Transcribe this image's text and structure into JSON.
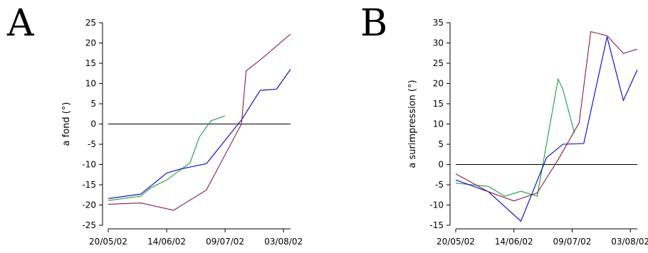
{
  "chart_data": [
    {
      "type": "line",
      "panel_label": "A",
      "ylabel": "a fond (°)",
      "ylim": [
        -25,
        25
      ],
      "yticks": [
        -25,
        -20,
        -15,
        -10,
        -5,
        0,
        5,
        10,
        15,
        20,
        25
      ],
      "xticks": [
        "20/05/02",
        "14/06/02",
        "09/07/02",
        "03/08/02"
      ],
      "xlim": [
        "2002-05-20",
        "2002-08-06"
      ],
      "zero_line": true,
      "grid": false,
      "series": [
        {
          "color": "#1a9e3a",
          "points": [
            [
              "2002-05-20",
              -18.9
            ],
            [
              "2002-06-03",
              -17.8
            ],
            [
              "2002-06-07",
              -15.8
            ],
            [
              "2002-06-14",
              -13.8
            ],
            [
              "2002-06-24",
              -9.6
            ],
            [
              "2002-06-28",
              -3.2
            ],
            [
              "2002-07-03",
              0.8
            ],
            [
              "2002-07-09",
              2.0
            ]
          ]
        },
        {
          "color": "#0000cc",
          "points": [
            [
              "2002-05-20",
              -18.4
            ],
            [
              "2002-06-03",
              -17.3
            ],
            [
              "2002-06-14",
              -12.1
            ],
            [
              "2002-06-20",
              -11.1
            ],
            [
              "2002-07-01",
              -9.8
            ],
            [
              "2002-07-16",
              1.0
            ],
            [
              "2002-07-24",
              8.3
            ],
            [
              "2002-07-31",
              8.6
            ],
            [
              "2002-08-06",
              13.5
            ]
          ]
        },
        {
          "color": "#8b1a4a",
          "points": [
            [
              "2002-05-20",
              -19.8
            ],
            [
              "2002-06-03",
              -19.5
            ],
            [
              "2002-06-17",
              -21.3
            ],
            [
              "2002-07-01",
              -16.3
            ],
            [
              "2002-07-16",
              0.0
            ],
            [
              "2002-07-18",
              13.1
            ],
            [
              "2002-07-24",
              15.8
            ],
            [
              "2002-08-06",
              22.2
            ]
          ]
        }
      ]
    },
    {
      "type": "line",
      "panel_label": "B",
      "ylabel": "a surimpression (°)",
      "ylim": [
        -15,
        35
      ],
      "yticks": [
        -15,
        -10,
        -5,
        0,
        5,
        10,
        15,
        20,
        25,
        30,
        35
      ],
      "xticks": [
        "20/05/02",
        "14/06/02",
        "09/07/02",
        "03/08/02"
      ],
      "xlim": [
        "2002-05-20",
        "2002-08-06"
      ],
      "zero_line": true,
      "grid": false,
      "series": [
        {
          "color": "#1a9e3a",
          "points": [
            [
              "2002-05-20",
              -4.6
            ],
            [
              "2002-05-27",
              -5.0
            ],
            [
              "2002-06-03",
              -5.4
            ],
            [
              "2002-06-10",
              -7.8
            ],
            [
              "2002-06-17",
              -6.6
            ],
            [
              "2002-06-24",
              -7.8
            ],
            [
              "2002-07-03",
              21.1
            ],
            [
              "2002-07-05",
              18.6
            ],
            [
              "2002-07-10",
              7.8
            ]
          ]
        },
        {
          "color": "#0000cc",
          "points": [
            [
              "2002-05-20",
              -3.8
            ],
            [
              "2002-06-03",
              -6.7
            ],
            [
              "2002-06-17",
              -14.0
            ],
            [
              "2002-06-28",
              1.7
            ],
            [
              "2002-07-05",
              5.0
            ],
            [
              "2002-07-14",
              5.2
            ],
            [
              "2002-07-24",
              31.5
            ],
            [
              "2002-07-31",
              15.8
            ],
            [
              "2002-08-06",
              23.4
            ]
          ]
        },
        {
          "color": "#8b1a4a",
          "points": [
            [
              "2002-05-20",
              -2.3
            ],
            [
              "2002-06-03",
              -6.7
            ],
            [
              "2002-06-14",
              -9.0
            ],
            [
              "2002-06-24",
              -7.0
            ],
            [
              "2002-07-03",
              1.2
            ],
            [
              "2002-07-12",
              10.3
            ],
            [
              "2002-07-17",
              32.8
            ],
            [
              "2002-07-24",
              31.8
            ],
            [
              "2002-07-31",
              27.4
            ],
            [
              "2002-08-06",
              28.5
            ]
          ]
        }
      ]
    }
  ]
}
